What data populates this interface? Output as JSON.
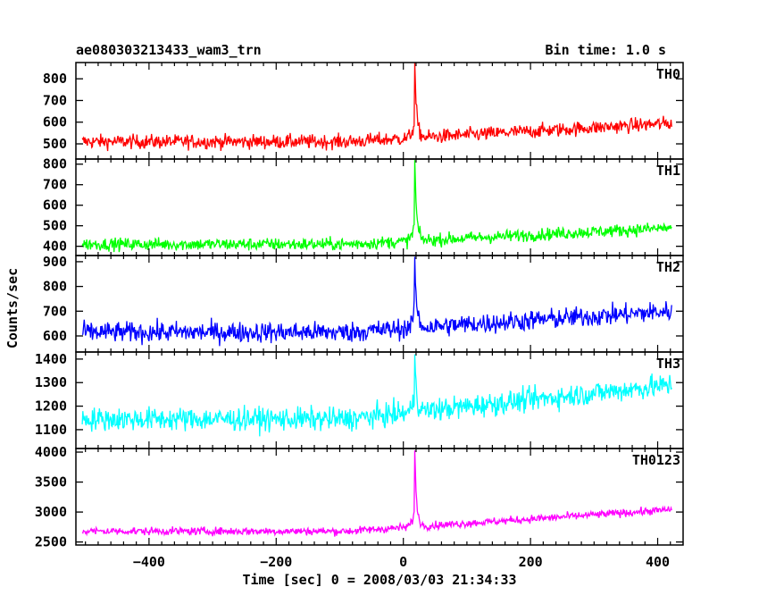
{
  "header": {
    "title": "ae080303213433_wam3_trn",
    "bin_time": "Bin time: 1.0 s"
  },
  "chart_data": {
    "type": "line",
    "xlabel": "Time [sec] 0 = 2008/03/03 21:34:33",
    "ylabel": "Counts/sec",
    "xlim": [
      -515,
      440
    ],
    "x_ticks": [
      -400,
      -200,
      0,
      200,
      400
    ],
    "x_tick_labels": [
      "−400",
      "−200",
      "0",
      "200",
      "400"
    ],
    "x_range": [
      -505,
      422
    ],
    "burst_time": 18,
    "panels": [
      {
        "name": "TH0",
        "color": "#ff0000",
        "ylim": [
          430,
          875
        ],
        "yticks": [
          500,
          600,
          700,
          800
        ],
        "ytick_labels": [
          "500",
          "600",
          "700",
          "800"
        ],
        "baseline_start": 510,
        "baseline_end": 595,
        "noise": 30,
        "peak": 875
      },
      {
        "name": "TH1",
        "color": "#00ff00",
        "ylim": [
          355,
          825
        ],
        "yticks": [
          400,
          500,
          600,
          700,
          800
        ],
        "ytick_labels": [
          "400",
          "500",
          "600",
          "700",
          "800"
        ],
        "baseline_start": 410,
        "baseline_end": 490,
        "noise": 28,
        "peak": 820
      },
      {
        "name": "TH2",
        "color": "#0000ff",
        "ylim": [
          535,
          925
        ],
        "yticks": [
          600,
          700,
          800,
          900
        ],
        "ytick_labels": [
          "600",
          "700",
          "800",
          "900"
        ],
        "baseline_start": 615,
        "baseline_end": 700,
        "noise": 38,
        "peak": 920
      },
      {
        "name": "TH3",
        "color": "#00ffff",
        "ylim": [
          1020,
          1430
        ],
        "yticks": [
          1100,
          1200,
          1300,
          1400
        ],
        "ytick_labels": [
          "1100",
          "1200",
          "1300",
          "1400"
        ],
        "baseline_start": 1145,
        "baseline_end": 1290,
        "noise": 45,
        "peak": 1420
      },
      {
        "name": "TH0123",
        "color": "#ff00ff",
        "ylim": [
          2450,
          4060
        ],
        "yticks": [
          2500,
          3000,
          3500,
          4000
        ],
        "ytick_labels": [
          "2500",
          "3000",
          "3500",
          "4000"
        ],
        "baseline_start": 2680,
        "baseline_end": 3040,
        "noise": 60,
        "peak": 4030
      }
    ]
  }
}
